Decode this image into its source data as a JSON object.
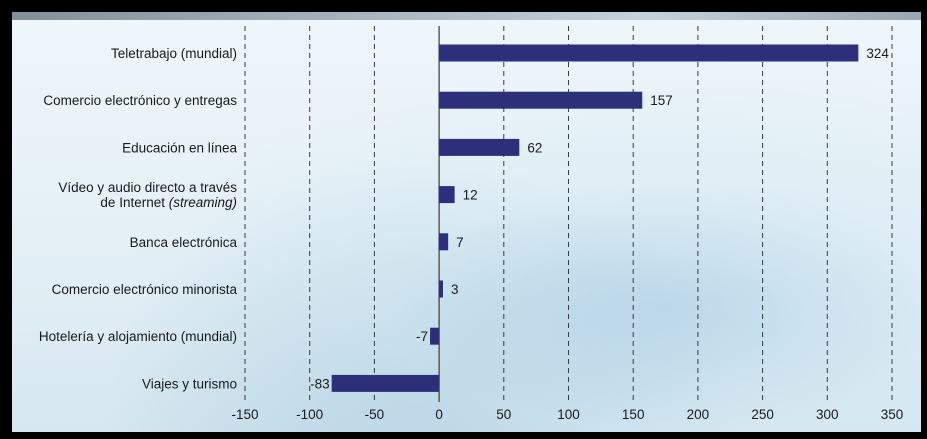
{
  "chart_data": {
    "type": "bar",
    "orientation": "horizontal",
    "categories": [
      "Teletrabajo (mundial)",
      "Comercio electrónico y entregas",
      "Educación en línea",
      "Vídeo y audio directo a través de Internet (streaming)",
      "Banca electrónica",
      "Comercio electrónico minorista",
      "Hotelería y alojamiento (mundial)",
      "Viajes y turismo"
    ],
    "category_lines": [
      [
        {
          "text": "Teletrabajo (mundial)"
        }
      ],
      [
        {
          "text": "Comercio electrónico y entregas"
        }
      ],
      [
        {
          "text": "Educación en línea"
        }
      ],
      [
        {
          "text": "Vídeo y audio directo a través"
        },
        {
          "text": "de Internet ",
          "italic": "(streaming)"
        }
      ],
      [
        {
          "text": "Banca electrónica"
        }
      ],
      [
        {
          "text": "Comercio electrónico minorista"
        }
      ],
      [
        {
          "text": "Hotelería y alojamiento (mundial)"
        }
      ],
      [
        {
          "text": "Viajes y turismo"
        }
      ]
    ],
    "values": [
      324,
      157,
      62,
      12,
      7,
      3,
      -7,
      -83
    ],
    "value_labels": [
      "324",
      "157",
      "62",
      "12",
      "7",
      "3",
      "-7",
      "-83"
    ],
    "xlim": [
      -150,
      350
    ],
    "xticks": [
      -150,
      -100,
      -50,
      0,
      50,
      100,
      150,
      200,
      250,
      300,
      350
    ],
    "xtick_labels": [
      "-150",
      "-100",
      "-50",
      "0",
      "50",
      "100",
      "150",
      "200",
      "250",
      "300",
      "350"
    ],
    "grid": "vertical-dashed",
    "title": "",
    "xlabel": "",
    "ylabel": "",
    "bar_color": "#2e2f7a"
  }
}
